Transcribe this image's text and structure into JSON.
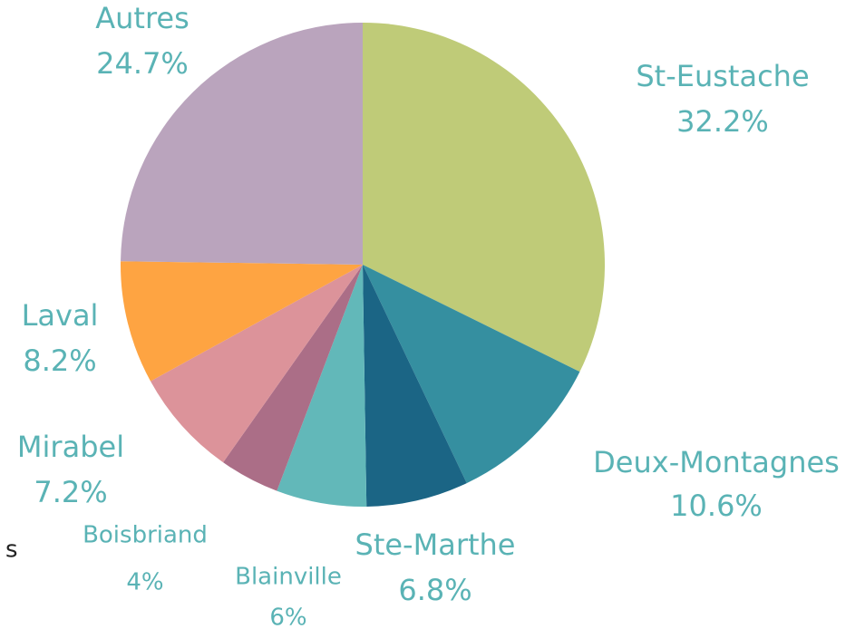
{
  "chart_data": {
    "type": "pie",
    "annotation": "s",
    "categories": [
      "St-Eustache",
      "Deux-Montagnes",
      "Ste-Marthe",
      "Blainville",
      "Boisbriand",
      "Mirabel",
      "Laval",
      "Autres"
    ],
    "values": [
      32.2,
      10.6,
      6.8,
      6,
      4,
      7.2,
      8.2,
      24.7
    ],
    "value_labels": [
      "32.2%",
      "10.6%",
      "6.8%",
      "6%",
      "4%",
      "7.2%",
      "8.2%",
      "24.7%"
    ],
    "colors": [
      "#bfcb78",
      "#358fa0",
      "#1b6585",
      "#62b8b9",
      "#ab6e87",
      "#dc939a",
      "#fea442",
      "#baa4bd"
    ]
  }
}
